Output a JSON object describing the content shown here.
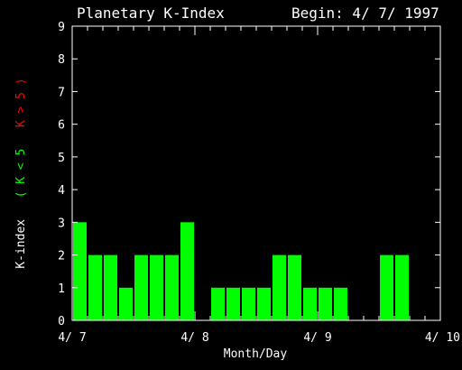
{
  "chart_data": {
    "type": "bar",
    "title": "Planetary K-Index",
    "begin_label": "Begin: 4/ 7/ 1997",
    "xlabel": "Month/Day",
    "ylabel_parts": [
      {
        "text": "K-index",
        "color": "#ffffff"
      },
      {
        "text": "( K < 5",
        "color": "#00ff00"
      },
      {
        "text": "K > 5 )",
        "color": "#ff0000"
      }
    ],
    "ylim": [
      0,
      9
    ],
    "yticks": [
      "0",
      "1",
      "2",
      "3",
      "4",
      "5",
      "6",
      "7",
      "8",
      "9"
    ],
    "x_start_hours": 0,
    "x_end_hours": 72,
    "x_tick_labels": [
      "4/ 7",
      "4/ 8",
      "4/ 9",
      "4/ 10"
    ],
    "interval_hours": 3,
    "threshold": 5,
    "colors": {
      "below": "#00ff00",
      "above": "#ff0000",
      "axis": "#ffffff",
      "background": "#000000"
    },
    "values": [
      3,
      2,
      2,
      1,
      2,
      2,
      2,
      3,
      0,
      1,
      1,
      1,
      1,
      2,
      2,
      1,
      1,
      1,
      0,
      0,
      2,
      2,
      0,
      0
    ],
    "grid": false,
    "legend": "none"
  }
}
